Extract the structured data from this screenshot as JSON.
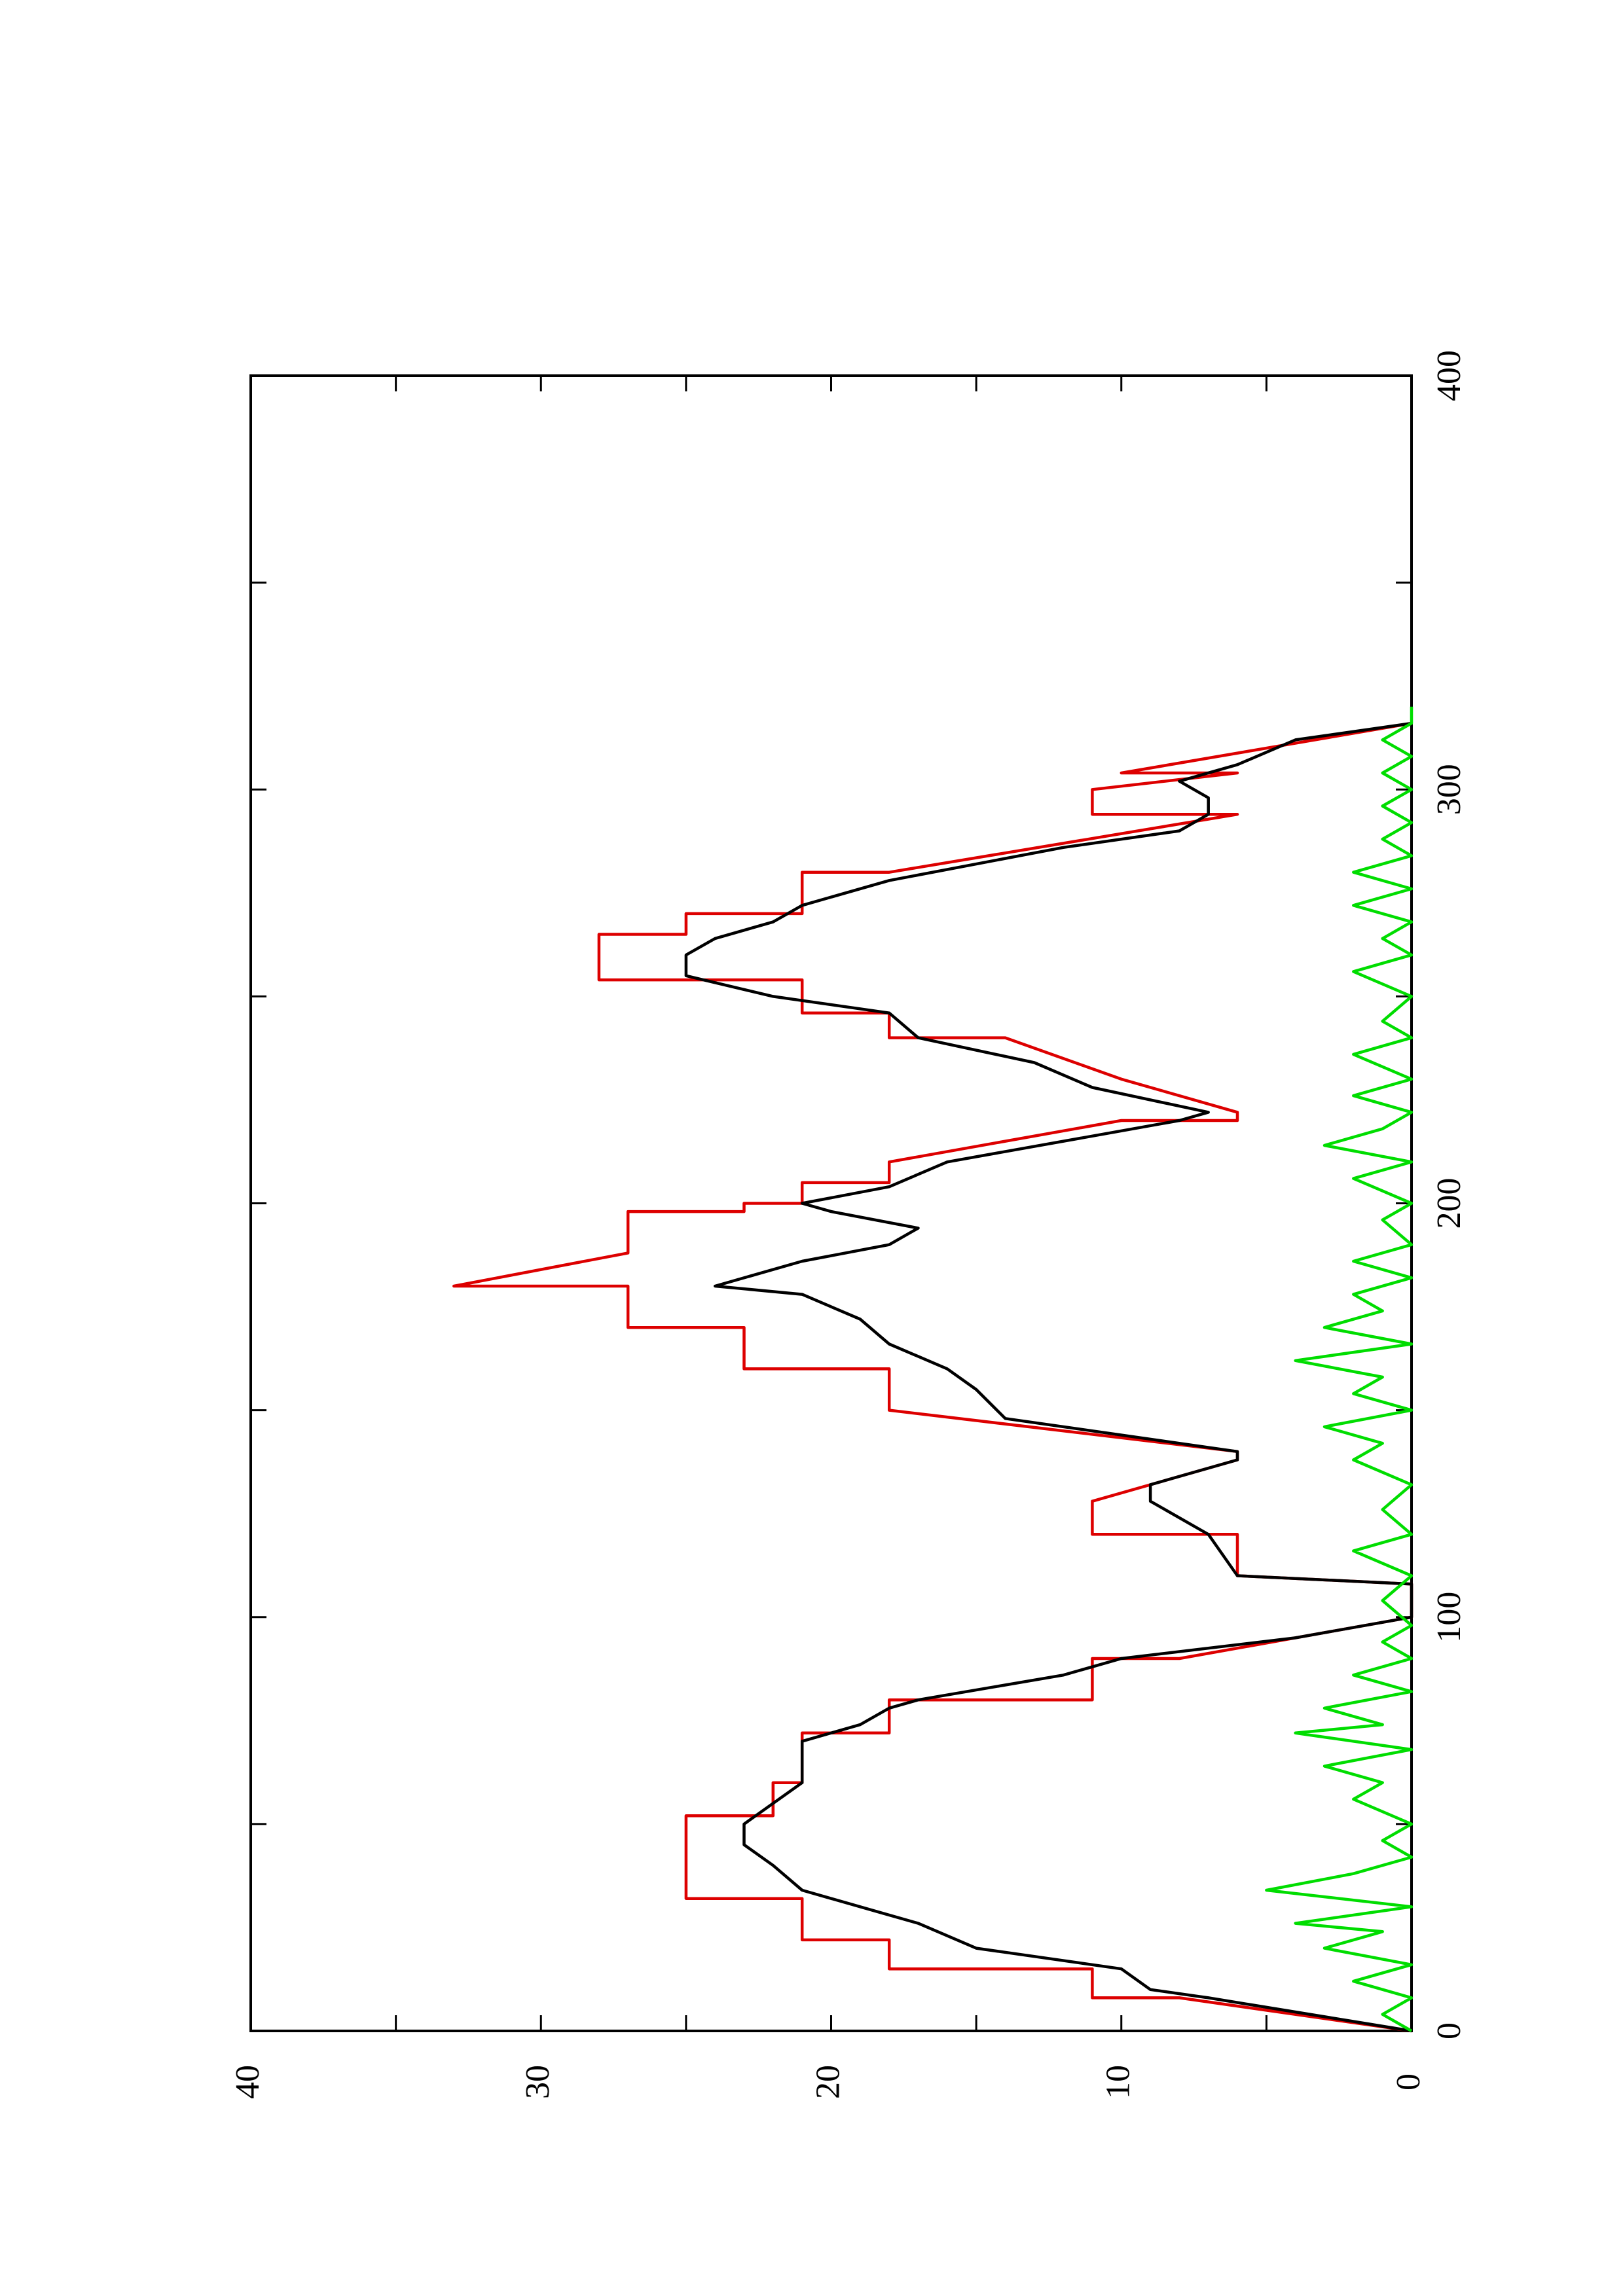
{
  "chart_data": {
    "type": "line",
    "orientation": "rotated 90 degrees counter-clockwise (x axis runs bottom-to-top, y axis runs left-to-right)",
    "title": "",
    "xlabel": "",
    "ylabel": "",
    "xlim": [
      0,
      400
    ],
    "ylim": [
      0,
      40
    ],
    "x_ticks": [
      "0",
      "100",
      "200",
      "300",
      "400"
    ],
    "y_ticks": [
      "0",
      "10",
      "20",
      "30",
      "40"
    ],
    "grid": false,
    "legend": "none",
    "series": [
      {
        "color": "#dd0000",
        "points": [
          [
            0,
            0
          ],
          [
            8,
            8
          ],
          [
            8,
            11
          ],
          [
            15,
            11
          ],
          [
            15,
            18
          ],
          [
            22,
            18
          ],
          [
            22,
            21
          ],
          [
            32,
            21
          ],
          [
            32,
            25
          ],
          [
            52,
            25
          ],
          [
            52,
            22
          ],
          [
            60,
            22
          ],
          [
            60,
            21
          ],
          [
            72,
            21
          ],
          [
            72,
            18
          ],
          [
            80,
            18
          ],
          [
            80,
            11
          ],
          [
            90,
            11
          ],
          [
            90,
            8
          ],
          [
            100,
            0
          ],
          [
            108,
            0
          ],
          [
            110,
            6
          ],
          [
            120,
            6
          ],
          [
            120,
            11
          ],
          [
            128,
            11
          ],
          [
            138,
            6
          ],
          [
            140,
            6
          ],
          [
            150,
            18
          ],
          [
            160,
            18
          ],
          [
            160,
            23
          ],
          [
            170,
            23
          ],
          [
            170,
            27
          ],
          [
            180,
            27
          ],
          [
            180,
            33
          ],
          [
            188,
            27
          ],
          [
            198,
            27
          ],
          [
            198,
            23
          ],
          [
            200,
            23
          ],
          [
            200,
            21
          ],
          [
            205,
            21
          ],
          [
            205,
            18
          ],
          [
            210,
            18
          ],
          [
            220,
            10
          ],
          [
            220,
            6
          ],
          [
            222,
            6
          ],
          [
            230,
            10
          ],
          [
            240,
            14
          ],
          [
            240,
            18
          ],
          [
            246,
            18
          ],
          [
            246,
            21
          ],
          [
            254,
            21
          ],
          [
            254,
            28
          ],
          [
            265,
            28
          ],
          [
            265,
            25
          ],
          [
            270,
            25
          ],
          [
            270,
            21
          ],
          [
            280,
            21
          ],
          [
            280,
            18
          ],
          [
            294,
            6
          ],
          [
            294,
            11
          ],
          [
            298,
            11
          ],
          [
            300,
            11
          ],
          [
            304,
            6
          ],
          [
            304,
            10
          ],
          [
            316,
            0
          ]
        ]
      },
      {
        "color": "#000000",
        "points": [
          [
            0,
            0
          ],
          [
            8,
            7
          ],
          [
            10,
            9
          ],
          [
            15,
            10
          ],
          [
            20,
            15
          ],
          [
            26,
            17
          ],
          [
            32,
            20
          ],
          [
            34,
            21
          ],
          [
            40,
            22
          ],
          [
            45,
            23
          ],
          [
            50,
            23
          ],
          [
            55,
            22
          ],
          [
            60,
            21
          ],
          [
            66,
            21
          ],
          [
            70,
            21
          ],
          [
            74,
            19
          ],
          [
            78,
            18
          ],
          [
            80,
            17
          ],
          [
            86,
            12
          ],
          [
            90,
            10
          ],
          [
            95,
            4
          ],
          [
            100,
            0
          ],
          [
            108,
            0
          ],
          [
            110,
            6
          ],
          [
            120,
            7
          ],
          [
            128,
            9
          ],
          [
            132,
            9
          ],
          [
            138,
            6
          ],
          [
            140,
            6
          ],
          [
            148,
            14
          ],
          [
            155,
            15
          ],
          [
            160,
            16
          ],
          [
            166,
            18
          ],
          [
            172,
            19
          ],
          [
            178,
            21
          ],
          [
            180,
            24
          ],
          [
            186,
            21
          ],
          [
            190,
            18
          ],
          [
            194,
            17
          ],
          [
            198,
            20
          ],
          [
            200,
            21
          ],
          [
            204,
            18
          ],
          [
            210,
            16
          ],
          [
            220,
            8
          ],
          [
            222,
            7
          ],
          [
            228,
            11
          ],
          [
            234,
            13
          ],
          [
            240,
            17
          ],
          [
            246,
            18
          ],
          [
            250,
            22
          ],
          [
            255,
            25
          ],
          [
            260,
            25
          ],
          [
            264,
            24
          ],
          [
            268,
            22
          ],
          [
            272,
            21
          ],
          [
            278,
            18
          ],
          [
            286,
            12
          ],
          [
            290,
            8
          ],
          [
            294,
            7
          ],
          [
            298,
            7
          ],
          [
            302,
            8
          ],
          [
            306,
            6
          ],
          [
            312,
            4
          ],
          [
            316,
            0
          ]
        ]
      },
      {
        "color": "#00dd00",
        "points": [
          [
            0,
            0
          ],
          [
            4,
            1
          ],
          [
            8,
            0
          ],
          [
            12,
            2
          ],
          [
            16,
            0
          ],
          [
            20,
            3
          ],
          [
            24,
            1
          ],
          [
            26,
            4
          ],
          [
            30,
            0
          ],
          [
            34,
            5
          ],
          [
            38,
            2
          ],
          [
            42,
            0
          ],
          [
            46,
            1
          ],
          [
            50,
            0
          ],
          [
            56,
            2
          ],
          [
            60,
            1
          ],
          [
            64,
            3
          ],
          [
            68,
            0
          ],
          [
            72,
            4
          ],
          [
            74,
            1
          ],
          [
            78,
            3
          ],
          [
            82,
            0
          ],
          [
            86,
            2
          ],
          [
            90,
            0
          ],
          [
            94,
            1
          ],
          [
            98,
            0
          ],
          [
            104,
            1
          ],
          [
            110,
            0
          ],
          [
            116,
            2
          ],
          [
            120,
            0
          ],
          [
            126,
            1
          ],
          [
            132,
            0
          ],
          [
            138,
            2
          ],
          [
            142,
            1
          ],
          [
            146,
            3
          ],
          [
            150,
            0
          ],
          [
            154,
            2
          ],
          [
            158,
            1
          ],
          [
            162,
            4
          ],
          [
            166,
            0
          ],
          [
            170,
            3
          ],
          [
            174,
            1
          ],
          [
            178,
            2
          ],
          [
            182,
            0
          ],
          [
            186,
            2
          ],
          [
            190,
            0
          ],
          [
            196,
            1
          ],
          [
            200,
            0
          ],
          [
            206,
            2
          ],
          [
            210,
            0
          ],
          [
            214,
            3
          ],
          [
            218,
            1
          ],
          [
            222,
            0
          ],
          [
            226,
            2
          ],
          [
            230,
            0
          ],
          [
            236,
            2
          ],
          [
            240,
            0
          ],
          [
            244,
            1
          ],
          [
            250,
            0
          ],
          [
            256,
            2
          ],
          [
            260,
            0
          ],
          [
            264,
            1
          ],
          [
            268,
            0
          ],
          [
            272,
            2
          ],
          [
            276,
            0
          ],
          [
            280,
            2
          ],
          [
            284,
            0
          ],
          [
            288,
            1
          ],
          [
            292,
            0
          ],
          [
            296,
            1
          ],
          [
            300,
            0
          ],
          [
            304,
            1
          ],
          [
            308,
            0
          ],
          [
            312,
            1
          ],
          [
            316,
            0
          ],
          [
            320,
            0
          ]
        ]
      }
    ]
  }
}
